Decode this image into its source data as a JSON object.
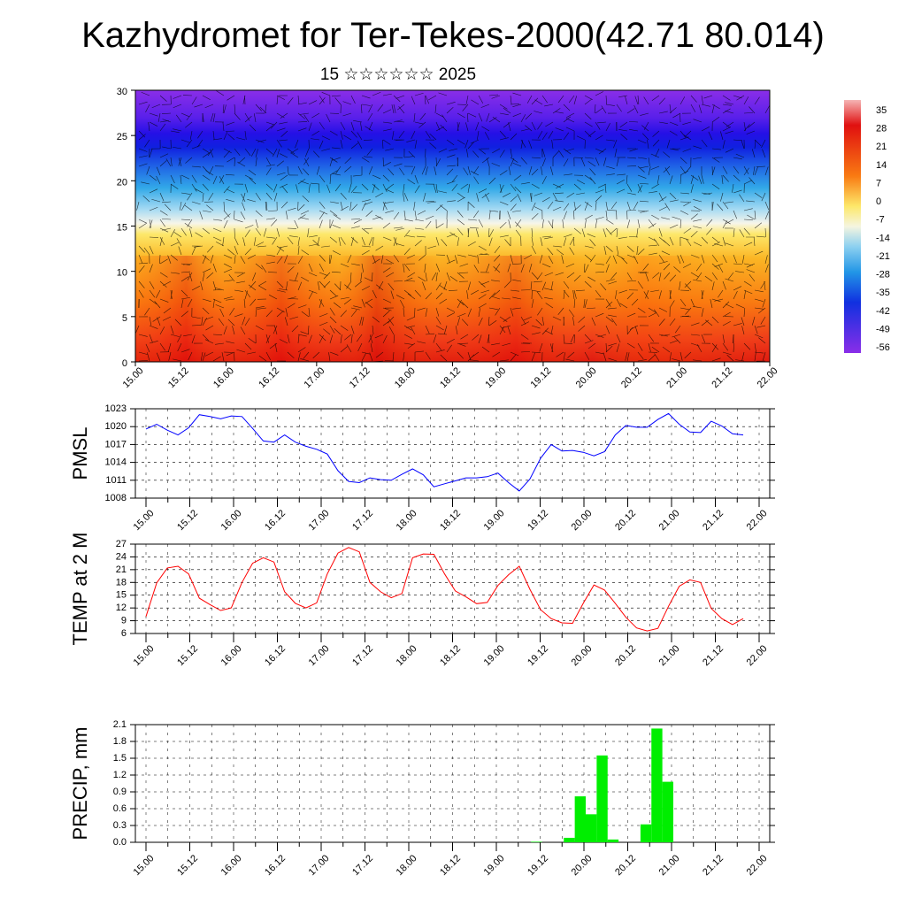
{
  "title": "Kazhydromet for Ter-Tekes-2000(42.71 80.014)",
  "subtitle": "15 ☆☆☆☆☆☆ 2025",
  "x_ticks": [
    "15.00",
    "15.12",
    "16.00",
    "16.12",
    "17.00",
    "17.12",
    "18.00",
    "18.12",
    "19.00",
    "19.12",
    "20.00",
    "20.12",
    "21.00",
    "21.12",
    "22.00"
  ],
  "chart_data": [
    {
      "type": "heatmap",
      "title": "",
      "ylabel": "",
      "y_ticks": [
        "0",
        "5",
        "10",
        "15",
        "20",
        "25",
        "30"
      ],
      "ylim": [
        0,
        30
      ],
      "x": [
        "15.00",
        "15.12",
        "16.00",
        "16.12",
        "17.00",
        "17.12",
        "18.00",
        "18.12",
        "19.00",
        "19.12",
        "20.00",
        "20.12",
        "21.00",
        "21.12",
        "22.00"
      ],
      "colorbar_labels": [
        "35",
        "28",
        "21",
        "14",
        "7",
        "0",
        "-7",
        "-14",
        "-21",
        "-28",
        "-35",
        "-42",
        "-49",
        "-56"
      ],
      "colorbar_range": [
        -60,
        38
      ],
      "colors": {
        "cold": "#7a2be0",
        "mid_cold": "#1aa3e6",
        "neutral": "#fff3b0",
        "warm": "#ff9a10",
        "hot": "#e31a1a"
      }
    },
    {
      "type": "line",
      "ylabel": "PMSL",
      "y_ticks": [
        "1008",
        "1011",
        "1014",
        "1017",
        "1020",
        "1023"
      ],
      "ylim": [
        1008,
        1023
      ],
      "color": "#0000ff",
      "values": [
        1019.6,
        1020.4,
        1019.4,
        1018.6,
        1019.8,
        1022.0,
        1021.7,
        1021.3,
        1021.8,
        1021.7,
        1019.7,
        1017.6,
        1017.4,
        1018.6,
        1017.4,
        1016.7,
        1016.2,
        1015.4,
        1012.6,
        1010.8,
        1010.6,
        1011.4,
        1011.1,
        1011.0,
        1012.0,
        1012.9,
        1011.9,
        1009.9,
        1010.4,
        1010.9,
        1011.4,
        1011.4,
        1011.6,
        1012.2,
        1010.6,
        1009.2,
        1011.2,
        1014.7,
        1017.0,
        1015.9,
        1016.0,
        1015.7,
        1015.1,
        1015.8,
        1018.6,
        1020.2,
        1019.9,
        1019.9,
        1021.2,
        1022.2,
        1020.4,
        1019.1,
        1019.0,
        1020.9,
        1020.1,
        1018.8,
        1018.6
      ],
      "x_range": [
        0,
        56
      ]
    },
    {
      "type": "line",
      "ylabel": "TEMP at 2 M",
      "y_ticks": [
        "6",
        "9",
        "12",
        "15",
        "18",
        "21",
        "24",
        "27"
      ],
      "ylim": [
        6,
        27
      ],
      "color": "#ff0000",
      "values": [
        10.0,
        17.9,
        21.4,
        21.8,
        20.0,
        14.3,
        12.8,
        11.4,
        12.0,
        18.0,
        22.5,
        23.8,
        22.8,
        15.8,
        13.1,
        12.0,
        13.2,
        20.0,
        24.9,
        26.2,
        25.2,
        18.0,
        15.8,
        14.4,
        15.4,
        23.8,
        24.7,
        24.6,
        20.0,
        16.0,
        14.6,
        13.0,
        13.3,
        17.3,
        19.8,
        21.8,
        16.4,
        11.6,
        9.5,
        8.5,
        8.4,
        13.1,
        17.4,
        16.2,
        13.1,
        9.8,
        7.3,
        6.6,
        7.2,
        12.4,
        17.1,
        18.6,
        18.0,
        11.9,
        9.5,
        8.1,
        9.5
      ],
      "x_range": [
        0,
        56
      ]
    },
    {
      "type": "bar",
      "ylabel": "PRECIP, mm",
      "y_ticks": [
        "0.0",
        "0.3",
        "0.6",
        "0.9",
        "1.2",
        "1.5",
        "1.8",
        "2.1"
      ],
      "ylim": [
        0,
        2.1
      ],
      "color": "#00ee00",
      "values": [
        0,
        0,
        0,
        0,
        0,
        0,
        0,
        0,
        0,
        0,
        0,
        0,
        0,
        0,
        0,
        0,
        0,
        0,
        0,
        0,
        0,
        0,
        0,
        0,
        0,
        0,
        0,
        0,
        0,
        0,
        0,
        0,
        0,
        0,
        0,
        0.01,
        0,
        0,
        0.08,
        0.82,
        0.5,
        1.55,
        0.05,
        0,
        0,
        0.32,
        2.03,
        1.08,
        0,
        0,
        0,
        0,
        0,
        0,
        0,
        0
      ]
    }
  ]
}
